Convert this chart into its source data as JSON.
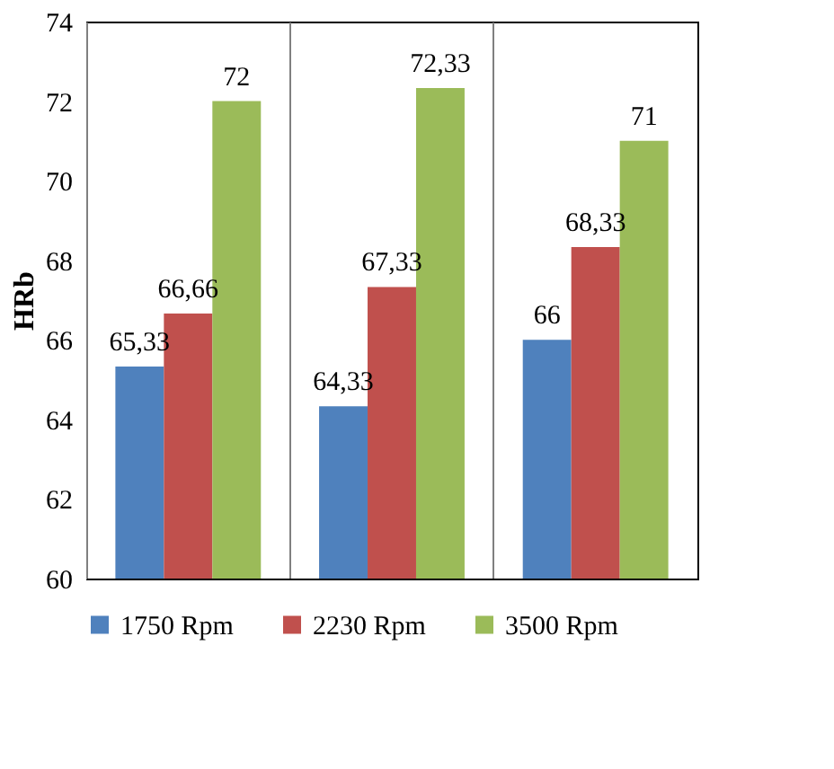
{
  "chart_data": {
    "type": "bar",
    "ylabel": "HRb",
    "categories": [
      null,
      null,
      null
    ],
    "series": [
      {
        "name": "1750 Rpm",
        "color": "#4f81bd",
        "values": [
          65.33,
          64.33,
          66
        ],
        "value_labels": [
          "65,33",
          "64,33",
          "66"
        ]
      },
      {
        "name": "2230 Rpm",
        "color": "#c0504d",
        "values": [
          66.66,
          67.33,
          68.33
        ],
        "value_labels": [
          "66,66",
          "67,33",
          "68,33"
        ]
      },
      {
        "name": "3500 Rpm",
        "color": "#9bbb59",
        "values": [
          72,
          72.33,
          71
        ],
        "value_labels": [
          "72",
          "72,33",
          "71"
        ]
      }
    ],
    "ylim": [
      60,
      74
    ],
    "yticks": [
      60,
      62,
      64,
      66,
      68,
      70,
      72,
      74
    ],
    "grid": "x",
    "legend": "bottom",
    "tick_labels": "y"
  }
}
